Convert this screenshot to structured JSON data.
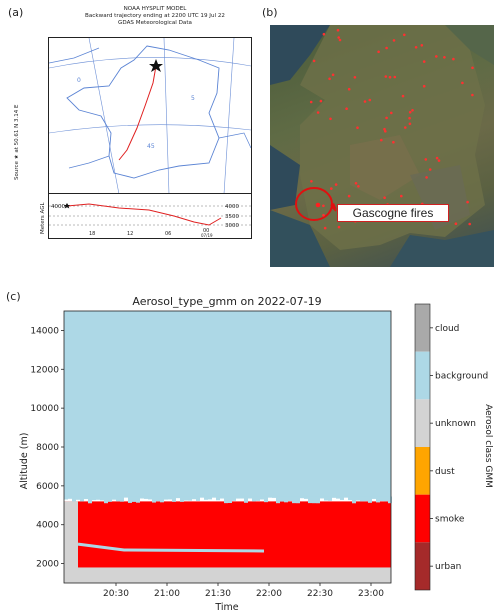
{
  "panels": {
    "a": "(a)",
    "b": "(b)",
    "c": "(c)"
  },
  "hysplit": {
    "title_lines": [
      "NOAA HYSPLIT MODEL",
      "Backward trajectory ending at 2200 UTC 19 Jul 22",
      "GDAS Meteorological Data"
    ],
    "side_label": "Source ★ at  50.61 N   3.14 E",
    "meters_label": "Meters AGL",
    "vert_ticks": [
      "4000",
      "3500",
      "3000"
    ],
    "vert_ytick_left": "4000",
    "time_ticks": [
      "18",
      "12",
      "06",
      "00"
    ],
    "date_label": "07/19",
    "grid_labels": [
      "0",
      "5",
      "45"
    ]
  },
  "satellite": {
    "fire_label": "Gascogne fires"
  },
  "chart_data": {
    "type": "heatmap",
    "title": "Aerosol_type_gmm on 2022-07-19",
    "xlabel": "Time",
    "ylabel": "Altitude (m)",
    "x_ticks": [
      "20:30",
      "21:00",
      "21:30",
      "22:00",
      "22:30",
      "23:00"
    ],
    "y_ticks": [
      2000,
      4000,
      6000,
      8000,
      10000,
      12000,
      14000
    ],
    "ylim": [
      1000,
      15000
    ],
    "colorbar_label": "Aerosol class GMM",
    "classes": [
      {
        "name": "cloud",
        "color": "#a9a9a9"
      },
      {
        "name": "background",
        "color": "#add8e6"
      },
      {
        "name": "unknown",
        "color": "#d3d3d3"
      },
      {
        "name": "dust",
        "color": "#ffa500"
      },
      {
        "name": "smoke",
        "color": "#ff0000"
      },
      {
        "name": "urban",
        "color": "#a52a2a"
      }
    ],
    "layers": [
      {
        "class": "background",
        "from_alt": 5400,
        "to_alt": 15000
      },
      {
        "class": "smoke",
        "from_alt": 1200,
        "to_alt": 5200
      },
      {
        "class": "unknown",
        "from_alt": 1000,
        "to_alt": 1800
      }
    ]
  }
}
